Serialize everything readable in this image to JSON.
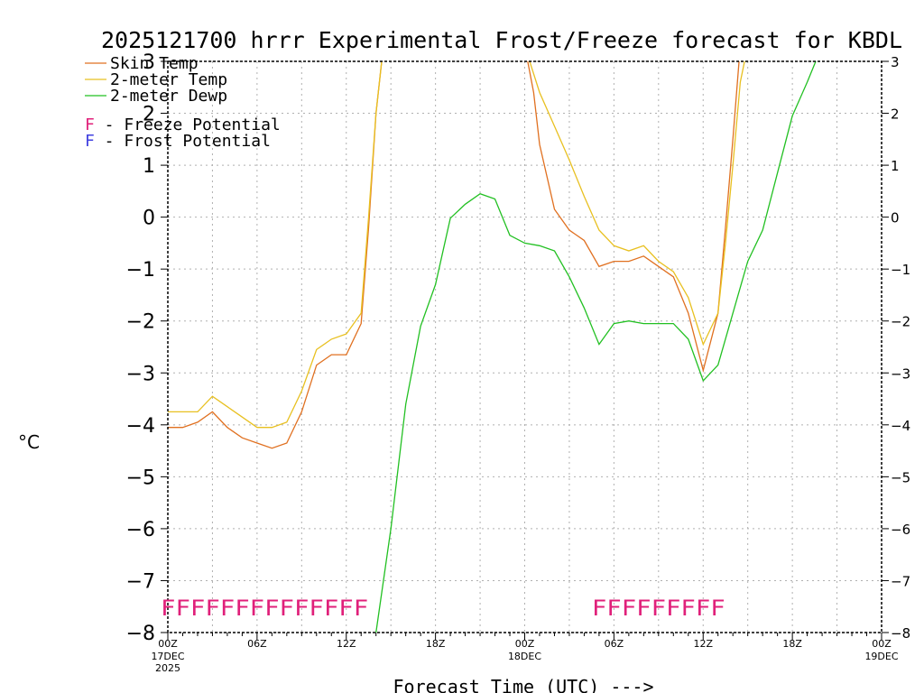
{
  "chart_data": {
    "type": "line",
    "title": "2025121700 hrrr Experimental Frost/Freeze forecast for KBDL",
    "xlabel": "Forecast Time (UTC) --->",
    "ylabel": "°C",
    "ylim": [
      -8,
      3
    ],
    "xlim": [
      0,
      48
    ],
    "grid": true,
    "yticks": [
      -8,
      -7,
      -6,
      -5,
      -4,
      -3,
      -2,
      -1,
      0,
      1,
      2,
      3
    ],
    "ytick_labels": [
      "−8",
      "−7",
      "−6",
      "−5",
      "−4",
      "−3",
      "−2",
      "−1",
      "0",
      "1",
      "2",
      "3"
    ],
    "xticks": [
      {
        "x": 0,
        "label": "00Z",
        "sub": [
          "17DEC",
          "2025"
        ]
      },
      {
        "x": 6,
        "label": "06Z",
        "sub": []
      },
      {
        "x": 12,
        "label": "12Z",
        "sub": []
      },
      {
        "x": 18,
        "label": "18Z",
        "sub": []
      },
      {
        "x": 24,
        "label": "00Z",
        "sub": [
          "18DEC"
        ]
      },
      {
        "x": 30,
        "label": "06Z",
        "sub": []
      },
      {
        "x": 36,
        "label": "12Z",
        "sub": []
      },
      {
        "x": 42,
        "label": "18Z",
        "sub": []
      },
      {
        "x": 48,
        "label": "00Z",
        "sub": [
          "19DEC"
        ]
      }
    ],
    "series": [
      {
        "name": "Skin Temp",
        "color": "#e07020",
        "points": [
          [
            0,
            -4.05
          ],
          [
            1,
            -4.05
          ],
          [
            2,
            -3.95
          ],
          [
            3,
            -3.75
          ],
          [
            4,
            -4.05
          ],
          [
            5,
            -4.25
          ],
          [
            6,
            -4.35
          ],
          [
            7,
            -4.45
          ],
          [
            8,
            -4.35
          ],
          [
            9,
            -3.75
          ],
          [
            10,
            -2.85
          ],
          [
            11,
            -2.65
          ],
          [
            12,
            -2.65
          ],
          [
            13,
            -2.05
          ],
          [
            13.5,
            -0.2
          ],
          [
            14,
            2.0
          ],
          [
            14.5,
            3.3
          ],
          [
            24,
            3.3
          ],
          [
            24.6,
            2.4
          ],
          [
            25,
            1.4
          ],
          [
            26,
            0.15
          ],
          [
            27,
            -0.25
          ],
          [
            28,
            -0.45
          ],
          [
            29,
            -0.95
          ],
          [
            30,
            -0.85
          ],
          [
            31,
            -0.85
          ],
          [
            32,
            -0.75
          ],
          [
            33,
            -0.95
          ],
          [
            34,
            -1.15
          ],
          [
            35,
            -1.85
          ],
          [
            36,
            -2.95
          ],
          [
            37,
            -1.85
          ],
          [
            37.5,
            -0.2
          ],
          [
            38,
            1.5
          ],
          [
            38.5,
            3.3
          ]
        ]
      },
      {
        "name": "2-meter Temp",
        "color": "#e8c020",
        "points": [
          [
            0,
            -3.75
          ],
          [
            1,
            -3.75
          ],
          [
            2,
            -3.75
          ],
          [
            3,
            -3.45
          ],
          [
            4,
            -3.65
          ],
          [
            5,
            -3.85
          ],
          [
            6,
            -4.05
          ],
          [
            7,
            -4.05
          ],
          [
            8,
            -3.95
          ],
          [
            9,
            -3.35
          ],
          [
            10,
            -2.55
          ],
          [
            11,
            -2.35
          ],
          [
            12,
            -2.25
          ],
          [
            13,
            -1.85
          ],
          [
            13.5,
            0.0
          ],
          [
            14,
            2.0
          ],
          [
            14.5,
            3.3
          ],
          [
            24,
            3.3
          ],
          [
            25,
            2.4
          ],
          [
            26,
            1.75
          ],
          [
            27,
            1.1
          ],
          [
            28,
            0.4
          ],
          [
            29,
            -0.25
          ],
          [
            30,
            -0.55
          ],
          [
            31,
            -0.65
          ],
          [
            32,
            -0.55
          ],
          [
            33,
            -0.85
          ],
          [
            34,
            -1.05
          ],
          [
            35,
            -1.55
          ],
          [
            36,
            -2.45
          ],
          [
            37,
            -1.85
          ],
          [
            37.5,
            -0.5
          ],
          [
            38,
            1.0
          ],
          [
            38.5,
            2.6
          ],
          [
            39,
            3.3
          ]
        ]
      },
      {
        "name": "2-meter Dewp",
        "color": "#22c022",
        "points": [
          [
            14,
            -8.0
          ],
          [
            15,
            -6.0
          ],
          [
            16,
            -3.6
          ],
          [
            17,
            -2.1
          ],
          [
            18,
            -1.3
          ],
          [
            19,
            -0.02
          ],
          [
            20,
            0.25
          ],
          [
            21,
            0.45
          ],
          [
            22,
            0.35
          ],
          [
            23,
            -0.35
          ],
          [
            24,
            -0.5
          ],
          [
            25,
            -0.55
          ],
          [
            26,
            -0.65
          ],
          [
            27,
            -1.15
          ],
          [
            28,
            -1.75
          ],
          [
            29,
            -2.45
          ],
          [
            30,
            -2.05
          ],
          [
            31,
            -2.0
          ],
          [
            32,
            -2.05
          ],
          [
            33,
            -2.05
          ],
          [
            34,
            -2.05
          ],
          [
            35,
            -2.35
          ],
          [
            36,
            -3.15
          ],
          [
            37,
            -2.85
          ],
          [
            38,
            -1.85
          ],
          [
            39,
            -0.85
          ],
          [
            40,
            -0.25
          ],
          [
            41,
            0.85
          ],
          [
            42,
            1.95
          ],
          [
            43,
            2.6
          ],
          [
            44,
            3.3
          ]
        ]
      }
    ],
    "legend": [
      {
        "label": "Skin Temp",
        "color": "#e07020"
      },
      {
        "label": "2-meter Temp",
        "color": "#e8c020"
      },
      {
        "label": "2-meter Dewp",
        "color": "#22c022"
      }
    ],
    "potential_legend": [
      {
        "symbol": "F",
        "text": " - Freeze Potential",
        "color": "#e0207a"
      },
      {
        "symbol": "F",
        "text": " - Frost Potential",
        "color": "#4040e0"
      }
    ],
    "flags": {
      "color": "#e0207a",
      "segments": [
        {
          "text": "FFFFFFFFFFFFFF",
          "start_hour": 0,
          "end_hour": 13
        },
        {
          "text": "FFFFFFFFF",
          "start_hour": 29,
          "end_hour": 37
        }
      ]
    }
  }
}
